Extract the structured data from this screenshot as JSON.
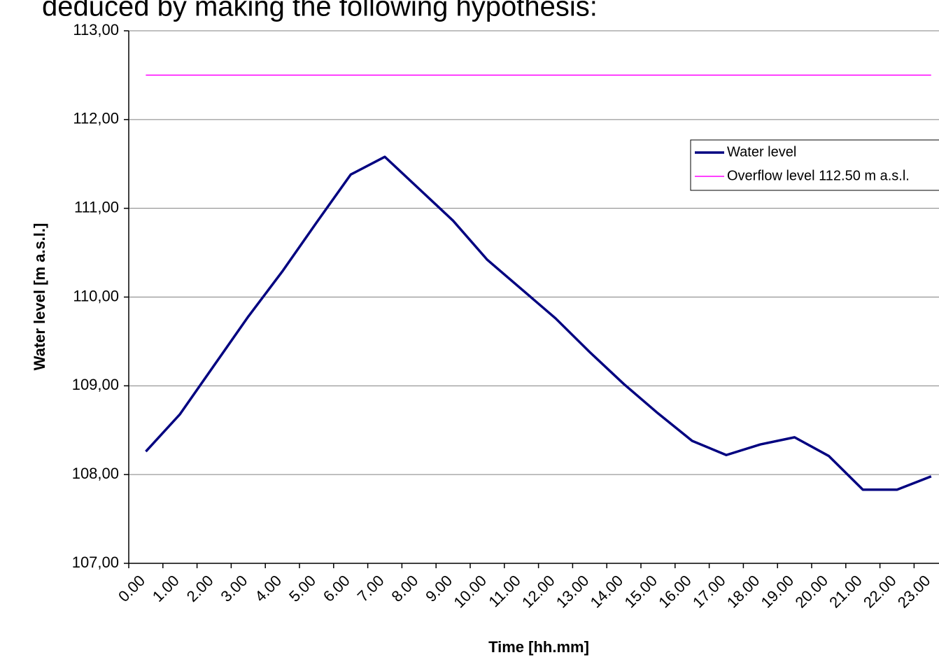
{
  "heading": "deduced by making the following hypothesis:",
  "chart_data": {
    "type": "line",
    "ylabel": "Water level [m a.s.l.]",
    "xlabel": "Time [hh.mm]",
    "categories": [
      "0.00",
      "1.00",
      "2.00",
      "3.00",
      "4.00",
      "5.00",
      "6.00",
      "7.00",
      "8.00",
      "9.00",
      "10.00",
      "11.00",
      "12.00",
      "13.00",
      "14.00",
      "15.00",
      "16.00",
      "17.00",
      "18.00",
      "19.00",
      "20.00",
      "21.00",
      "22.00",
      "23.00"
    ],
    "series": [
      {
        "name": "Water level",
        "color": "#000080",
        "width": 3.5,
        "values": [
          108.26,
          108.68,
          109.23,
          109.78,
          110.29,
          110.84,
          111.38,
          111.58,
          111.22,
          110.86,
          110.42,
          110.09,
          109.76,
          109.38,
          109.02,
          108.69,
          108.38,
          108.22,
          108.34,
          108.42,
          108.21,
          107.83,
          107.83,
          107.98
        ]
      },
      {
        "name": "Overflow level 112.50 m a.s.l.",
        "color": "#ff00ff",
        "width": 1.5,
        "values": [
          112.5,
          112.5,
          112.5,
          112.5,
          112.5,
          112.5,
          112.5,
          112.5,
          112.5,
          112.5,
          112.5,
          112.5,
          112.5,
          112.5,
          112.5,
          112.5,
          112.5,
          112.5,
          112.5,
          112.5,
          112.5,
          112.5,
          112.5,
          112.5
        ]
      }
    ],
    "ylim": [
      107,
      113
    ],
    "yticks": [
      {
        "value": 107,
        "label": "107,00"
      },
      {
        "value": 108,
        "label": "108,00"
      },
      {
        "value": 109,
        "label": "109,00"
      },
      {
        "value": 110,
        "label": "110,00"
      },
      {
        "value": 111,
        "label": "111,00"
      },
      {
        "value": 112,
        "label": "112,00"
      },
      {
        "value": 113,
        "label": "113,00"
      }
    ],
    "grid": true,
    "legend": "upper right"
  }
}
